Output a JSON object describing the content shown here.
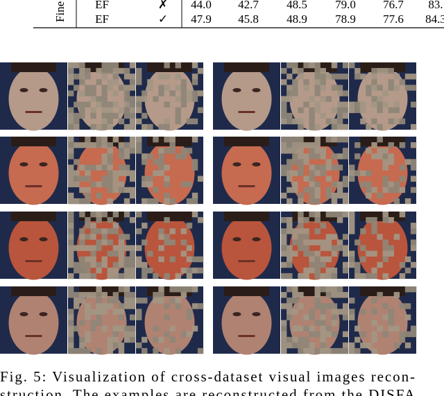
{
  "table": {
    "row_group": "Fine",
    "rows": [
      [
        "EF",
        "✗",
        "44.0",
        "42.7",
        "48.5",
        "79.0",
        "76.7",
        "83."
      ],
      [
        "EF",
        "✓",
        "47.9",
        "45.8",
        "48.9",
        "78.9",
        "77.6",
        "84.3"
      ]
    ]
  },
  "caption": {
    "lines": [
      "Fig. 5: Visualization of cross-dataset visual images recon-",
      "struction. The examples are reconstructed from the DISFA"
    ]
  }
}
